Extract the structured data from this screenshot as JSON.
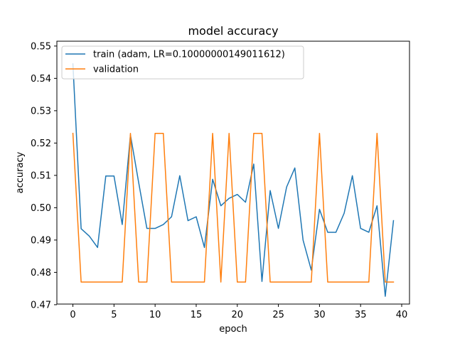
{
  "chart_data": {
    "type": "line",
    "title": "model accuracy",
    "xlabel": "epoch",
    "ylabel": "accuracy",
    "xlim": [
      -1.95,
      40.95
    ],
    "ylim": [
      0.4702,
      0.5515
    ],
    "xticks": [
      0,
      5,
      10,
      15,
      20,
      25,
      30,
      35,
      40
    ],
    "yticks": [
      0.47,
      0.48,
      0.49,
      0.5,
      0.51,
      0.52,
      0.53,
      0.54,
      0.55
    ],
    "ytick_labels": [
      "0.47",
      "0.48",
      "0.49",
      "0.50",
      "0.51",
      "0.52",
      "0.53",
      "0.54",
      "0.55"
    ],
    "legend_position": "upper-left",
    "series": [
      {
        "name": "train (adam, LR=0.10000000149011612)",
        "color": "#1f77b4",
        "x": [
          0,
          1,
          2,
          3,
          4,
          5,
          6,
          7,
          8,
          9,
          10,
          11,
          12,
          13,
          14,
          15,
          16,
          17,
          18,
          19,
          20,
          21,
          22,
          23,
          24,
          25,
          26,
          27,
          28,
          29,
          30,
          31,
          32,
          33,
          34,
          35,
          36,
          37,
          38,
          39
        ],
        "values": [
          0.5445,
          0.4935,
          0.4912,
          0.4877,
          0.5098,
          0.5098,
          0.4948,
          0.5225,
          0.5078,
          0.4936,
          0.4936,
          0.4948,
          0.4972,
          0.5099,
          0.496,
          0.4972,
          0.4877,
          0.5088,
          0.5006,
          0.5029,
          0.5041,
          0.5017,
          0.5135,
          0.4772,
          0.5053,
          0.4936,
          0.5064,
          0.5123,
          0.49,
          0.4807,
          0.4995,
          0.4924,
          0.4924,
          0.4983,
          0.5099,
          0.4936,
          0.4924,
          0.5006,
          0.4726,
          0.496
        ]
      },
      {
        "name": "validation",
        "color": "#ff7f0e",
        "x": [
          0,
          1,
          2,
          3,
          4,
          5,
          6,
          7,
          8,
          9,
          10,
          11,
          12,
          13,
          14,
          15,
          16,
          17,
          18,
          19,
          20,
          21,
          22,
          23,
          24,
          25,
          26,
          27,
          28,
          29,
          30,
          31,
          32,
          33,
          34,
          35,
          36,
          37,
          38,
          39
        ],
        "values": [
          0.523,
          0.477,
          0.477,
          0.477,
          0.477,
          0.477,
          0.477,
          0.523,
          0.477,
          0.477,
          0.523,
          0.523,
          0.477,
          0.477,
          0.477,
          0.477,
          0.477,
          0.523,
          0.477,
          0.523,
          0.477,
          0.477,
          0.523,
          0.523,
          0.477,
          0.477,
          0.477,
          0.477,
          0.477,
          0.477,
          0.523,
          0.477,
          0.477,
          0.477,
          0.477,
          0.477,
          0.477,
          0.523,
          0.477,
          0.477
        ]
      }
    ]
  }
}
